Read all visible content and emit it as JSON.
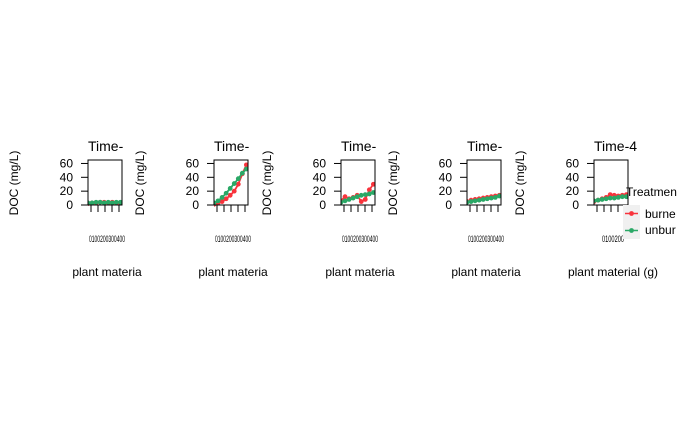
{
  "figure": {
    "legend": {
      "title": "Treatmen",
      "entries": [
        {
          "label": "burne",
          "series": "burned",
          "color": "#f8333c"
        },
        {
          "label": "unbur",
          "series": "unburned",
          "color": "#2aa866"
        }
      ]
    }
  },
  "chart_data": [
    {
      "type": "line",
      "title": "Time-",
      "xlabel": "plant materia",
      "ylabel": "DOC (mg/L)",
      "x_tick_text": "0100200300400",
      "yticks": [
        0,
        20,
        40,
        60
      ],
      "ylim": [
        0,
        65
      ],
      "xlim": [
        0,
        420
      ],
      "series": [
        {
          "name": "burned",
          "color": "#f8333c",
          "x": [
            0,
            50,
            100,
            150,
            200,
            250,
            300,
            350,
            400
          ],
          "y": [
            2,
            3,
            3,
            4,
            4,
            3,
            4,
            3,
            3
          ]
        },
        {
          "name": "unburned",
          "color": "#2aa866",
          "x": [
            0,
            50,
            100,
            150,
            200,
            250,
            300,
            350,
            400
          ],
          "y": [
            3,
            3,
            4,
            4,
            3,
            4,
            3,
            4,
            4
          ]
        }
      ]
    },
    {
      "type": "line",
      "title": "Time-",
      "xlabel": "plant materia",
      "ylabel": "DOC (mg/L)",
      "x_tick_text": "0100200300400",
      "yticks": [
        0,
        20,
        40,
        60
      ],
      "ylim": [
        0,
        65
      ],
      "xlim": [
        0,
        420
      ],
      "series": [
        {
          "name": "burned",
          "color": "#f8333c",
          "x": [
            0,
            50,
            100,
            150,
            200,
            250,
            300,
            350,
            400
          ],
          "y": [
            1,
            3,
            5,
            9,
            14,
            20,
            30,
            45,
            58
          ]
        },
        {
          "name": "unburned",
          "color": "#2aa866",
          "x": [
            0,
            50,
            100,
            150,
            200,
            250,
            300,
            350,
            400
          ],
          "y": [
            3,
            6,
            11,
            17,
            24,
            31,
            38,
            46,
            52
          ]
        }
      ]
    },
    {
      "type": "line",
      "title": "Time-",
      "xlabel": "plant materia",
      "ylabel": "DOC (mg/L)",
      "x_tick_text": "0100200300400",
      "yticks": [
        0,
        20,
        40,
        60
      ],
      "ylim": [
        0,
        65
      ],
      "xlim": [
        0,
        420
      ],
      "series": [
        {
          "name": "burned",
          "color": "#f8333c",
          "x": [
            0,
            50,
            100,
            150,
            200,
            250,
            300,
            350,
            400
          ],
          "y": [
            6,
            12,
            9,
            11,
            14,
            5,
            8,
            22,
            30
          ]
        },
        {
          "name": "unburned",
          "color": "#2aa866",
          "x": [
            0,
            50,
            100,
            150,
            200,
            250,
            300,
            350,
            400
          ],
          "y": [
            4,
            6,
            8,
            10,
            12,
            14,
            15,
            16,
            18
          ]
        }
      ]
    },
    {
      "type": "line",
      "title": "Time-",
      "xlabel": "plant materia",
      "ylabel": "DOC (mg/L)",
      "x_tick_text": "0100200300400",
      "yticks": [
        0,
        20,
        40,
        60
      ],
      "ylim": [
        0,
        65
      ],
      "xlim": [
        0,
        420
      ],
      "series": [
        {
          "name": "burned",
          "color": "#f8333c",
          "x": [
            0,
            50,
            100,
            150,
            200,
            250,
            300,
            350,
            400
          ],
          "y": [
            5,
            7,
            8,
            9,
            10,
            11,
            12,
            13,
            14
          ]
        },
        {
          "name": "unburned",
          "color": "#2aa866",
          "x": [
            0,
            50,
            100,
            150,
            200,
            250,
            300,
            350,
            400
          ],
          "y": [
            4,
            5,
            6,
            7,
            8,
            9,
            10,
            11,
            13
          ]
        }
      ]
    },
    {
      "type": "line",
      "title": "Time-4",
      "xlabel": "plant material (g)",
      "ylabel": "DOC (mg/L)",
      "x_tick_text": "0100200",
      "yticks": [
        0,
        20,
        40,
        60
      ],
      "ylim": [
        0,
        65
      ],
      "xlim": [
        0,
        420
      ],
      "series": [
        {
          "name": "burned",
          "color": "#f8333c",
          "x": [
            0,
            50,
            100,
            150,
            200,
            250,
            300,
            350,
            400
          ],
          "y": [
            5,
            7,
            9,
            11,
            15,
            14,
            13,
            14,
            15
          ]
        },
        {
          "name": "unburned",
          "color": "#2aa866",
          "x": [
            0,
            50,
            100,
            150,
            200,
            250,
            300,
            350,
            400
          ],
          "y": [
            6,
            7,
            8,
            9,
            10,
            10,
            11,
            12,
            12
          ]
        }
      ]
    }
  ]
}
